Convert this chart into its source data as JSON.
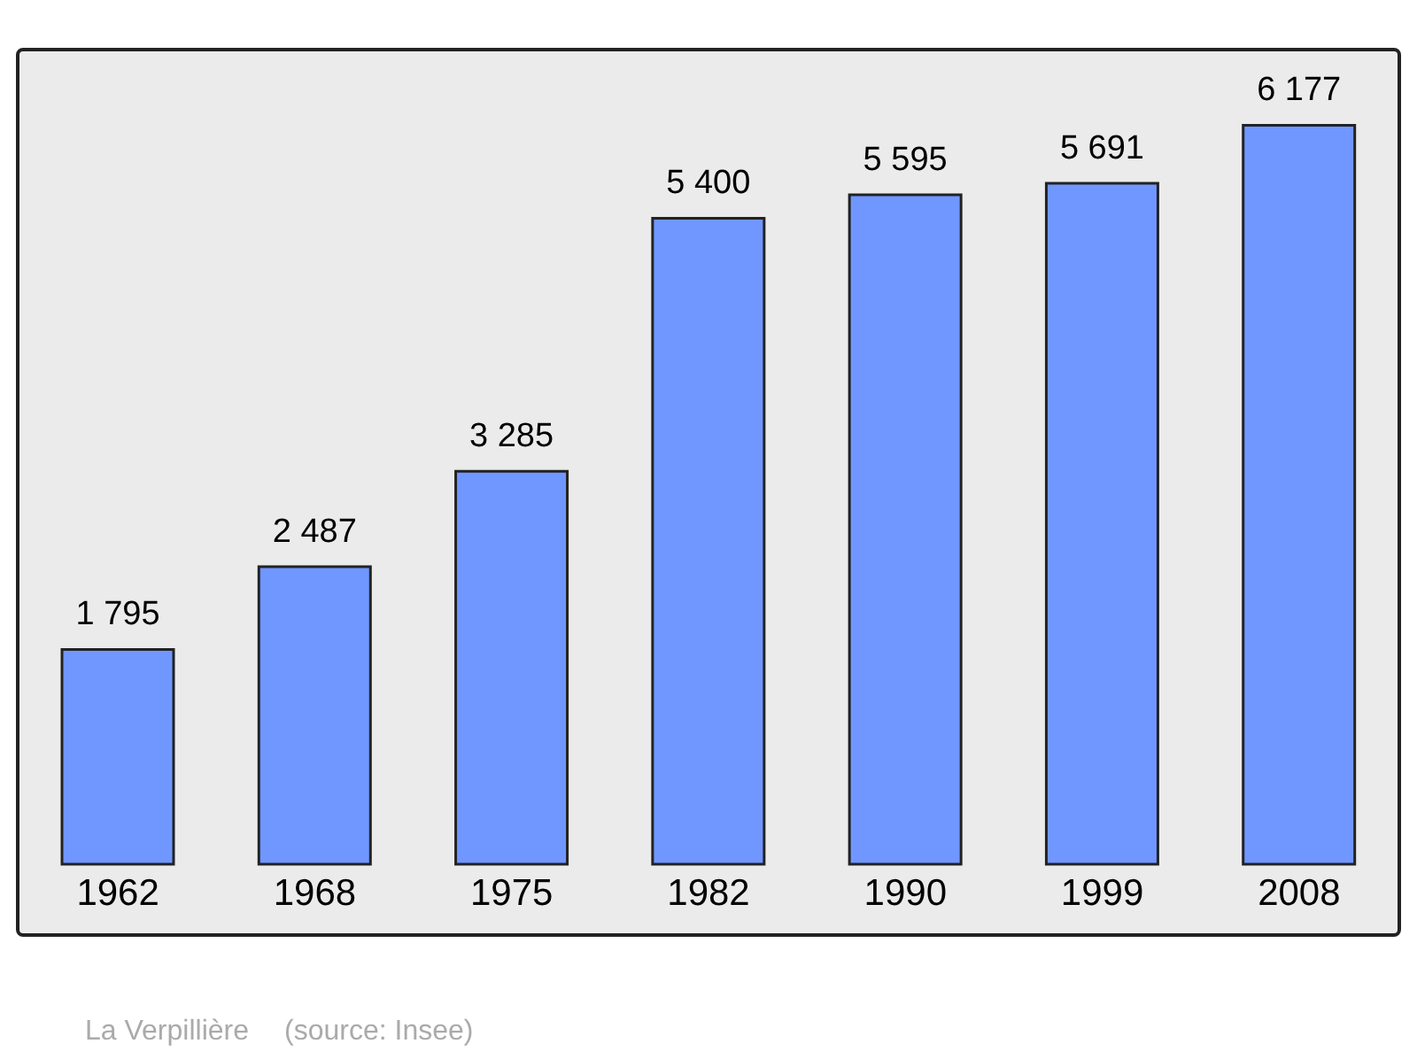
{
  "chart_data": {
    "type": "bar",
    "categories": [
      "1962",
      "1968",
      "1975",
      "1982",
      "1990",
      "1999",
      "2008"
    ],
    "values": [
      1795,
      2487,
      3285,
      5400,
      5595,
      5691,
      6177
    ],
    "value_labels": [
      "1 795",
      "2 487",
      "3 285",
      "5 400",
      "5 595",
      "5 691",
      "6 177"
    ],
    "color": "#7097ff",
    "annotations": [
      "La Verpillière",
      "(source: Insee)"
    ]
  }
}
